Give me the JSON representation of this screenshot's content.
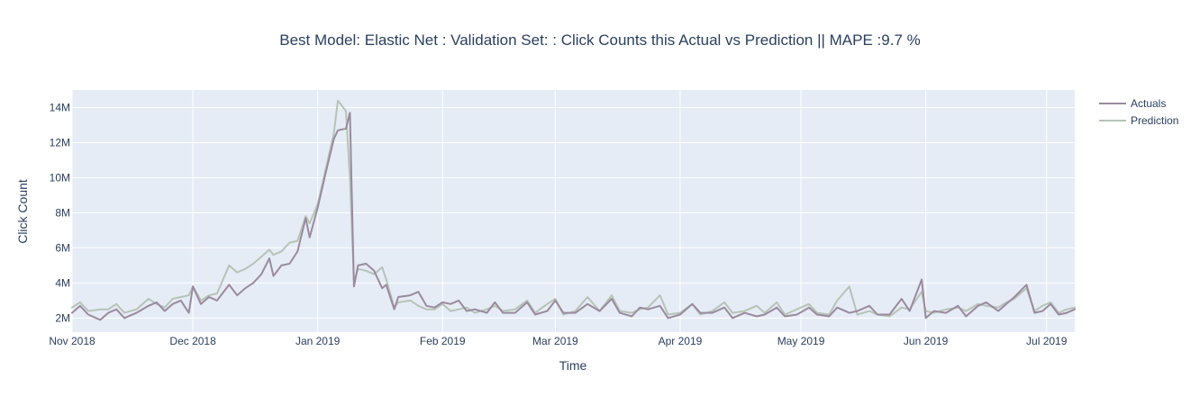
{
  "colors": {
    "plot_bg": "#e5ecf6",
    "grid": "#ffffff",
    "text": "#2a3f5f",
    "actuals": "#9b8a9e",
    "prediction": "#b6c4b6"
  },
  "chart_data": {
    "type": "line",
    "title": "Best Model: Elastic Net : Validation Set: : Click Counts this Actual vs Prediction  || MAPE :9.7 %",
    "xlabel": "Time",
    "ylabel": "Click Count",
    "x_start": "2018-11-01",
    "x_end": "2019-07-08",
    "ylim": [
      1.2,
      15.0
    ],
    "y_unit": "M",
    "x_ticks": [
      {
        "date": "2018-11-01",
        "label": "Nov 2018"
      },
      {
        "date": "2018-12-01",
        "label": "Dec 2018"
      },
      {
        "date": "2019-01-01",
        "label": "Jan 2019"
      },
      {
        "date": "2019-02-01",
        "label": "Feb 2019"
      },
      {
        "date": "2019-03-01",
        "label": "Mar 2019"
      },
      {
        "date": "2019-04-01",
        "label": "Apr 2019"
      },
      {
        "date": "2019-05-01",
        "label": "May 2019"
      },
      {
        "date": "2019-06-01",
        "label": "Jun 2019"
      },
      {
        "date": "2019-07-01",
        "label": "Jul 2019"
      }
    ],
    "y_ticks": [
      {
        "value": 2,
        "label": "2M"
      },
      {
        "value": 4,
        "label": "4M"
      },
      {
        "value": 6,
        "label": "6M"
      },
      {
        "value": 8,
        "label": "8M"
      },
      {
        "value": 10,
        "label": "10M"
      },
      {
        "value": 12,
        "label": "12M"
      },
      {
        "value": 14,
        "label": "14M"
      }
    ],
    "legend_position": "top-right",
    "series": [
      {
        "name": "Actuals",
        "points": [
          [
            "2018-11-01",
            2.3
          ],
          [
            "2018-11-03",
            2.7
          ],
          [
            "2018-11-05",
            2.2
          ],
          [
            "2018-11-08",
            1.9
          ],
          [
            "2018-11-10",
            2.3
          ],
          [
            "2018-11-12",
            2.5
          ],
          [
            "2018-11-14",
            2.0
          ],
          [
            "2018-11-17",
            2.3
          ],
          [
            "2018-11-20",
            2.7
          ],
          [
            "2018-11-22",
            2.9
          ],
          [
            "2018-11-24",
            2.4
          ],
          [
            "2018-11-26",
            2.8
          ],
          [
            "2018-11-28",
            3.0
          ],
          [
            "2018-11-30",
            2.3
          ],
          [
            "2018-12-01",
            3.8
          ],
          [
            "2018-12-03",
            2.8
          ],
          [
            "2018-12-05",
            3.2
          ],
          [
            "2018-12-07",
            3.0
          ],
          [
            "2018-12-10",
            3.9
          ],
          [
            "2018-12-12",
            3.3
          ],
          [
            "2018-12-14",
            3.7
          ],
          [
            "2018-12-16",
            4.0
          ],
          [
            "2018-12-18",
            4.5
          ],
          [
            "2018-12-20",
            5.4
          ],
          [
            "2018-12-21",
            4.4
          ],
          [
            "2018-12-23",
            5.0
          ],
          [
            "2018-12-25",
            5.1
          ],
          [
            "2018-12-27",
            5.8
          ],
          [
            "2018-12-29",
            7.7
          ],
          [
            "2018-12-30",
            6.6
          ],
          [
            "2019-01-01",
            8.3
          ],
          [
            "2019-01-03",
            10.3
          ],
          [
            "2019-01-05",
            12.2
          ],
          [
            "2019-01-06",
            12.7
          ],
          [
            "2019-01-08",
            12.8
          ],
          [
            "2019-01-09",
            13.7
          ],
          [
            "2019-01-10",
            3.8
          ],
          [
            "2019-01-11",
            5.0
          ],
          [
            "2019-01-13",
            5.1
          ],
          [
            "2019-01-15",
            4.7
          ],
          [
            "2019-01-17",
            3.7
          ],
          [
            "2019-01-18",
            3.9
          ],
          [
            "2019-01-20",
            2.5
          ],
          [
            "2019-01-21",
            3.2
          ],
          [
            "2019-01-24",
            3.3
          ],
          [
            "2019-01-26",
            3.5
          ],
          [
            "2019-01-28",
            2.7
          ],
          [
            "2019-01-30",
            2.6
          ],
          [
            "2019-02-01",
            2.9
          ],
          [
            "2019-02-03",
            2.8
          ],
          [
            "2019-02-05",
            3.0
          ],
          [
            "2019-02-07",
            2.4
          ],
          [
            "2019-02-09",
            2.5
          ],
          [
            "2019-02-12",
            2.3
          ],
          [
            "2019-02-14",
            2.9
          ],
          [
            "2019-02-16",
            2.3
          ],
          [
            "2019-02-19",
            2.3
          ],
          [
            "2019-02-22",
            2.9
          ],
          [
            "2019-02-24",
            2.2
          ],
          [
            "2019-02-27",
            2.4
          ],
          [
            "2019-03-01",
            3.0
          ],
          [
            "2019-03-03",
            2.3
          ],
          [
            "2019-03-06",
            2.3
          ],
          [
            "2019-03-09",
            2.8
          ],
          [
            "2019-03-12",
            2.4
          ],
          [
            "2019-03-15",
            3.1
          ],
          [
            "2019-03-17",
            2.3
          ],
          [
            "2019-03-20",
            2.1
          ],
          [
            "2019-03-22",
            2.6
          ],
          [
            "2019-03-24",
            2.5
          ],
          [
            "2019-03-27",
            2.7
          ],
          [
            "2019-03-29",
            2.0
          ],
          [
            "2019-04-01",
            2.2
          ],
          [
            "2019-04-04",
            2.8
          ],
          [
            "2019-04-06",
            2.3
          ],
          [
            "2019-04-09",
            2.3
          ],
          [
            "2019-04-12",
            2.6
          ],
          [
            "2019-04-14",
            2.0
          ],
          [
            "2019-04-17",
            2.3
          ],
          [
            "2019-04-20",
            2.1
          ],
          [
            "2019-04-22",
            2.2
          ],
          [
            "2019-04-25",
            2.6
          ],
          [
            "2019-04-27",
            2.1
          ],
          [
            "2019-04-30",
            2.2
          ],
          [
            "2019-05-03",
            2.6
          ],
          [
            "2019-05-05",
            2.2
          ],
          [
            "2019-05-08",
            2.1
          ],
          [
            "2019-05-10",
            2.6
          ],
          [
            "2019-05-13",
            2.3
          ],
          [
            "2019-05-15",
            2.4
          ],
          [
            "2019-05-18",
            2.7
          ],
          [
            "2019-05-20",
            2.2
          ],
          [
            "2019-05-23",
            2.2
          ],
          [
            "2019-05-26",
            3.1
          ],
          [
            "2019-05-28",
            2.4
          ],
          [
            "2019-05-31",
            4.2
          ],
          [
            "2019-06-01",
            2.0
          ],
          [
            "2019-06-03",
            2.4
          ],
          [
            "2019-06-06",
            2.3
          ],
          [
            "2019-06-09",
            2.7
          ],
          [
            "2019-06-11",
            2.1
          ],
          [
            "2019-06-14",
            2.7
          ],
          [
            "2019-06-16",
            2.9
          ],
          [
            "2019-06-19",
            2.4
          ],
          [
            "2019-06-21",
            2.8
          ],
          [
            "2019-06-23",
            3.2
          ],
          [
            "2019-06-26",
            3.9
          ],
          [
            "2019-06-28",
            2.3
          ],
          [
            "2019-06-30",
            2.4
          ],
          [
            "2019-07-02",
            2.8
          ],
          [
            "2019-07-04",
            2.2
          ],
          [
            "2019-07-06",
            2.3
          ],
          [
            "2019-07-08",
            2.5
          ]
        ]
      },
      {
        "name": "Prediction",
        "points": [
          [
            "2018-11-01",
            2.6
          ],
          [
            "2018-11-03",
            2.9
          ],
          [
            "2018-11-05",
            2.4
          ],
          [
            "2018-11-08",
            2.5
          ],
          [
            "2018-11-10",
            2.5
          ],
          [
            "2018-11-12",
            2.8
          ],
          [
            "2018-11-14",
            2.3
          ],
          [
            "2018-11-17",
            2.5
          ],
          [
            "2018-11-20",
            3.1
          ],
          [
            "2018-11-22",
            2.8
          ],
          [
            "2018-11-24",
            2.6
          ],
          [
            "2018-11-26",
            3.1
          ],
          [
            "2018-11-28",
            3.2
          ],
          [
            "2018-11-30",
            3.3
          ],
          [
            "2018-12-01",
            3.8
          ],
          [
            "2018-12-03",
            3.0
          ],
          [
            "2018-12-05",
            3.3
          ],
          [
            "2018-12-07",
            3.4
          ],
          [
            "2018-12-10",
            5.0
          ],
          [
            "2018-12-12",
            4.6
          ],
          [
            "2018-12-14",
            4.8
          ],
          [
            "2018-12-16",
            5.1
          ],
          [
            "2018-12-18",
            5.5
          ],
          [
            "2018-12-20",
            5.9
          ],
          [
            "2018-12-21",
            5.6
          ],
          [
            "2018-12-23",
            5.8
          ],
          [
            "2018-12-25",
            6.3
          ],
          [
            "2018-12-27",
            6.4
          ],
          [
            "2018-12-29",
            7.8
          ],
          [
            "2018-12-30",
            7.4
          ],
          [
            "2019-01-01",
            8.5
          ],
          [
            "2019-01-03",
            10.5
          ],
          [
            "2019-01-05",
            12.5
          ],
          [
            "2019-01-06",
            14.4
          ],
          [
            "2019-01-08",
            13.8
          ],
          [
            "2019-01-09",
            10.0
          ],
          [
            "2019-01-10",
            4.1
          ],
          [
            "2019-01-11",
            4.8
          ],
          [
            "2019-01-13",
            4.7
          ],
          [
            "2019-01-15",
            4.5
          ],
          [
            "2019-01-17",
            4.9
          ],
          [
            "2019-01-18",
            4.2
          ],
          [
            "2019-01-20",
            2.6
          ],
          [
            "2019-01-21",
            2.9
          ],
          [
            "2019-01-24",
            3.0
          ],
          [
            "2019-01-26",
            2.7
          ],
          [
            "2019-01-28",
            2.5
          ],
          [
            "2019-01-30",
            2.5
          ],
          [
            "2019-02-01",
            2.8
          ],
          [
            "2019-02-03",
            2.4
          ],
          [
            "2019-02-05",
            2.5
          ],
          [
            "2019-02-07",
            2.6
          ],
          [
            "2019-02-09",
            2.3
          ],
          [
            "2019-02-12",
            2.5
          ],
          [
            "2019-02-14",
            2.7
          ],
          [
            "2019-02-16",
            2.4
          ],
          [
            "2019-02-19",
            2.5
          ],
          [
            "2019-02-22",
            3.0
          ],
          [
            "2019-02-24",
            2.3
          ],
          [
            "2019-02-27",
            2.8
          ],
          [
            "2019-03-01",
            3.1
          ],
          [
            "2019-03-03",
            2.2
          ],
          [
            "2019-03-06",
            2.4
          ],
          [
            "2019-03-09",
            3.2
          ],
          [
            "2019-03-12",
            2.4
          ],
          [
            "2019-03-15",
            3.3
          ],
          [
            "2019-03-17",
            2.4
          ],
          [
            "2019-03-20",
            2.3
          ],
          [
            "2019-03-22",
            2.5
          ],
          [
            "2019-03-24",
            2.6
          ],
          [
            "2019-03-27",
            3.3
          ],
          [
            "2019-03-29",
            2.2
          ],
          [
            "2019-04-01",
            2.3
          ],
          [
            "2019-04-04",
            2.8
          ],
          [
            "2019-04-06",
            2.2
          ],
          [
            "2019-04-09",
            2.4
          ],
          [
            "2019-04-12",
            2.9
          ],
          [
            "2019-04-14",
            2.3
          ],
          [
            "2019-04-17",
            2.4
          ],
          [
            "2019-04-20",
            2.7
          ],
          [
            "2019-04-22",
            2.3
          ],
          [
            "2019-04-25",
            2.9
          ],
          [
            "2019-04-27",
            2.2
          ],
          [
            "2019-04-30",
            2.5
          ],
          [
            "2019-05-03",
            2.8
          ],
          [
            "2019-05-05",
            2.3
          ],
          [
            "2019-05-08",
            2.2
          ],
          [
            "2019-05-10",
            3.0
          ],
          [
            "2019-05-13",
            3.8
          ],
          [
            "2019-05-15",
            2.2
          ],
          [
            "2019-05-18",
            2.4
          ],
          [
            "2019-05-20",
            2.2
          ],
          [
            "2019-05-23",
            2.1
          ],
          [
            "2019-05-26",
            2.6
          ],
          [
            "2019-05-28",
            2.5
          ],
          [
            "2019-05-31",
            3.5
          ],
          [
            "2019-06-01",
            2.4
          ],
          [
            "2019-06-03",
            2.3
          ],
          [
            "2019-06-06",
            2.5
          ],
          [
            "2019-06-09",
            2.6
          ],
          [
            "2019-06-11",
            2.4
          ],
          [
            "2019-06-14",
            2.8
          ],
          [
            "2019-06-16",
            2.7
          ],
          [
            "2019-06-19",
            2.6
          ],
          [
            "2019-06-21",
            2.9
          ],
          [
            "2019-06-23",
            3.1
          ],
          [
            "2019-06-26",
            3.7
          ],
          [
            "2019-06-28",
            2.4
          ],
          [
            "2019-06-30",
            2.7
          ],
          [
            "2019-07-02",
            2.9
          ],
          [
            "2019-07-04",
            2.3
          ],
          [
            "2019-07-06",
            2.5
          ],
          [
            "2019-07-08",
            2.6
          ]
        ]
      }
    ]
  }
}
